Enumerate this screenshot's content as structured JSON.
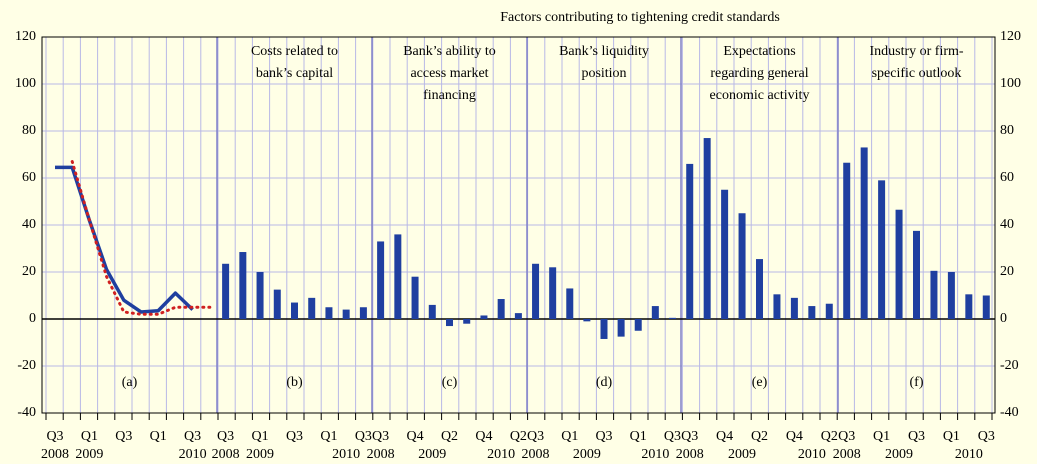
{
  "chart_data": [
    {
      "type": "line",
      "panel_label": "(a)",
      "categories": [
        "Q3",
        null,
        "Q1",
        null,
        "Q3",
        null,
        "Q1",
        null,
        "Q3",
        null
      ],
      "years": [
        "2008",
        null,
        "2009",
        null,
        null,
        null,
        null,
        null,
        "2010",
        null
      ],
      "series": [
        {
          "color": "#1f3f9f",
          "style": "solid",
          "values": [
            64.5,
            64.5,
            42,
            21,
            8,
            3,
            3.5,
            11,
            4,
            null
          ]
        },
        {
          "color": "#d02020",
          "style": "dotted",
          "values": [
            null,
            67,
            42,
            18,
            3,
            2,
            2,
            5,
            5,
            5
          ]
        }
      ],
      "ylim": [
        -40,
        120
      ],
      "yticks": [
        -40,
        -20,
        0,
        20,
        40,
        60,
        80,
        100,
        120
      ],
      "grid": true
    },
    {
      "type": "bar",
      "title": "Factors contributing to tightening credit standards",
      "color": "#1f3fa0",
      "ylim": [
        -40,
        120
      ],
      "yticks": [
        -40,
        -20,
        0,
        20,
        40,
        60,
        80,
        100,
        120
      ],
      "grid": true,
      "panels": [
        {
          "panel_label": "(b)",
          "title": [
            "Costs related to",
            "bank’s capital"
          ],
          "categories": [
            "Q3",
            null,
            "Q1",
            null,
            "Q3",
            null,
            "Q1",
            null,
            "Q3"
          ],
          "years": [
            "2008",
            null,
            "2009",
            null,
            null,
            null,
            null,
            "2010",
            null
          ],
          "values": [
            23.5,
            28.5,
            20,
            12.5,
            7,
            9,
            5,
            4,
            5
          ]
        },
        {
          "panel_label": "(c)",
          "title": [
            "Bank’s ability to",
            "access market",
            "financing"
          ],
          "categories": [
            "Q3",
            null,
            "Q4",
            null,
            "Q2",
            null,
            "Q4",
            null,
            "Q2"
          ],
          "years": [
            "2008",
            null,
            null,
            "2009",
            null,
            null,
            null,
            "2010",
            null
          ],
          "values": [
            33,
            36,
            18,
            6,
            -3,
            -2,
            1.5,
            8.5,
            2.5
          ]
        },
        {
          "panel_label": "(d)",
          "title": [
            "Bank’s liquidity",
            "position"
          ],
          "categories": [
            "Q3",
            null,
            "Q1",
            null,
            "Q3",
            null,
            "Q1",
            null,
            "Q3"
          ],
          "years": [
            "2008",
            null,
            null,
            "2009",
            null,
            null,
            null,
            "2010",
            null
          ],
          "values": [
            23.5,
            22,
            13,
            -1,
            -8.5,
            -7.5,
            -5,
            5.5,
            0.5
          ]
        },
        {
          "panel_label": "(e)",
          "title": [
            "Expectations",
            "regarding general",
            "economic activity"
          ],
          "categories": [
            "Q3",
            null,
            "Q4",
            null,
            "Q2",
            null,
            "Q4",
            null,
            "Q2"
          ],
          "years": [
            "2008",
            null,
            null,
            "2009",
            null,
            null,
            null,
            "2010",
            null
          ],
          "values": [
            66,
            77,
            55,
            45,
            25.5,
            10.5,
            9,
            5.5,
            6.5
          ]
        },
        {
          "panel_label": "(f)",
          "title": [
            "Industry or firm-",
            "specific outlook"
          ],
          "categories": [
            "Q3",
            null,
            "Q1",
            null,
            "Q3",
            null,
            "Q1",
            null,
            "Q3"
          ],
          "years": [
            "2008",
            null,
            null,
            "2009",
            null,
            null,
            null,
            "2010",
            null
          ],
          "values": [
            66.5,
            73,
            59,
            46.5,
            37.5,
            20.5,
            20,
            10.5,
            10
          ]
        }
      ]
    }
  ]
}
